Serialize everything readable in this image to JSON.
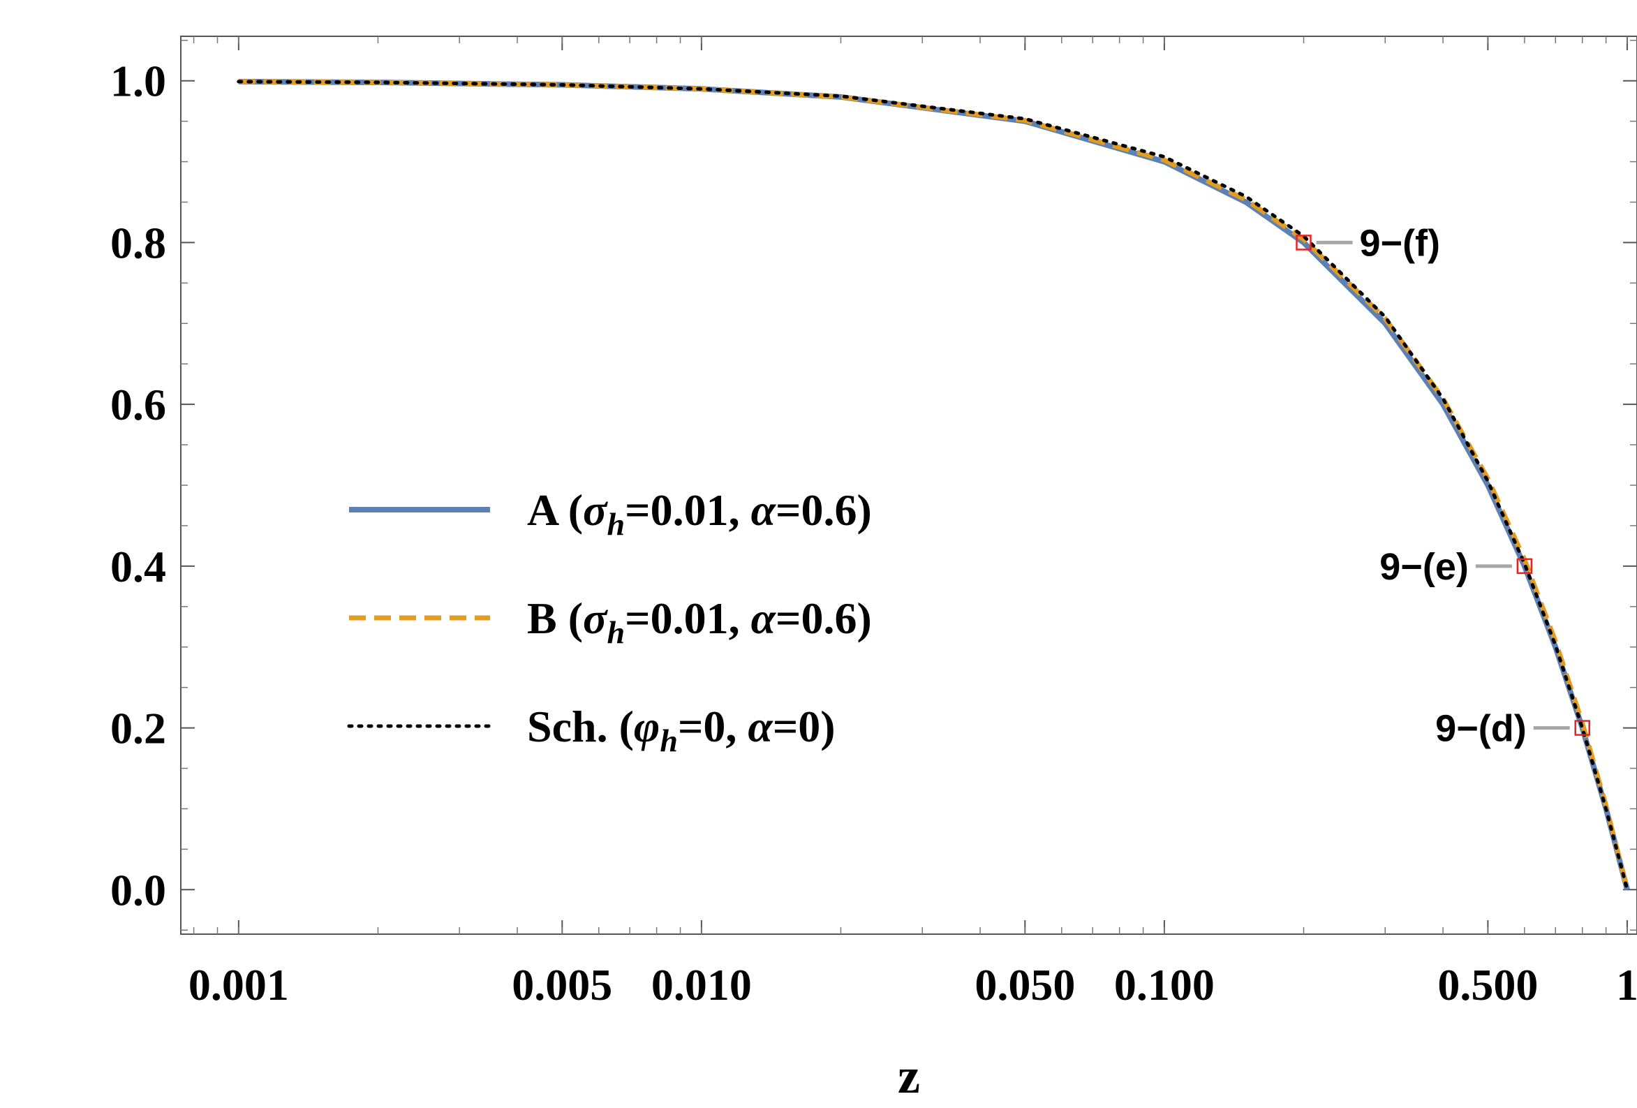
{
  "chart_data": {
    "type": "line",
    "xscale": "log",
    "xlabel": "z",
    "ylabel": "",
    "xlim": [
      0.00075,
      1.05
    ],
    "ylim": [
      -0.055,
      1.055
    ],
    "x_ticks": [
      {
        "value": 0.001,
        "label": "0.001"
      },
      {
        "value": 0.005,
        "label": "0.005"
      },
      {
        "value": 0.01,
        "label": "0.010"
      },
      {
        "value": 0.05,
        "label": "0.050"
      },
      {
        "value": 0.1,
        "label": "0.100"
      },
      {
        "value": 0.5,
        "label": "0.500"
      },
      {
        "value": 1,
        "label": "1"
      }
    ],
    "y_ticks": [
      {
        "value": 0.0,
        "label": "0.0"
      },
      {
        "value": 0.2,
        "label": "0.2"
      },
      {
        "value": 0.4,
        "label": "0.4"
      },
      {
        "value": 0.6,
        "label": "0.6"
      },
      {
        "value": 0.8,
        "label": "0.8"
      },
      {
        "value": 1.0,
        "label": "1.0"
      }
    ],
    "legend_position": "center-left",
    "series": [
      {
        "id": "A",
        "legend_main": "A (",
        "legend_sym1": "σ",
        "legend_sub": "h",
        "legend_rest": "=0.01, ",
        "legend_sym2": "α",
        "legend_end": "=0.6)",
        "color": "#5e81b5",
        "style": "solid",
        "x": [
          0.001,
          0.002,
          0.005,
          0.01,
          0.02,
          0.05,
          0.1,
          0.15,
          0.2,
          0.3,
          0.4,
          0.5,
          0.6,
          0.7,
          0.8,
          0.9,
          1.0
        ],
        "y": [
          0.999,
          0.998,
          0.995,
          0.99,
          0.98,
          0.95,
          0.9,
          0.85,
          0.8,
          0.7,
          0.6,
          0.5,
          0.4,
          0.3,
          0.2,
          0.1,
          0.0
        ]
      },
      {
        "id": "B",
        "legend_main": "B (",
        "legend_sym1": "σ",
        "legend_sub": "h",
        "legend_rest": "=0.01, ",
        "legend_sym2": "α",
        "legend_end": "=0.6)",
        "color": "#e19c24",
        "style": "dashed",
        "x": [
          0.001,
          0.002,
          0.005,
          0.01,
          0.02,
          0.05,
          0.1,
          0.15,
          0.2,
          0.3,
          0.4,
          0.5,
          0.6,
          0.7,
          0.8,
          0.9,
          1.0
        ],
        "y": [
          0.999,
          0.998,
          0.995,
          0.99,
          0.98,
          0.951,
          0.902,
          0.853,
          0.804,
          0.706,
          0.607,
          0.508,
          0.408,
          0.307,
          0.206,
          0.104,
          0.0
        ]
      },
      {
        "id": "Sch",
        "legend_main": "Sch. (",
        "legend_sym1": "φ",
        "legend_sub": "h",
        "legend_rest": "=0, ",
        "legend_sym2": "α",
        "legend_end": "=0)",
        "color": "#000000",
        "style": "dotted",
        "x": [
          0.001,
          0.002,
          0.005,
          0.01,
          0.02,
          0.05,
          0.1,
          0.15,
          0.2,
          0.3,
          0.4,
          0.5,
          0.6,
          0.7,
          0.8,
          0.9,
          1.0
        ],
        "y": [
          0.999,
          0.998,
          0.995,
          0.99,
          0.981,
          0.953,
          0.906,
          0.857,
          0.808,
          0.708,
          0.607,
          0.505,
          0.403,
          0.302,
          0.2,
          0.1,
          0.0
        ]
      }
    ],
    "annotations": [
      {
        "label": "9−(f)",
        "x": 0.2,
        "y": 0.8,
        "side": "right"
      },
      {
        "label": "9−(e)",
        "x": 0.6,
        "y": 0.4,
        "side": "left"
      },
      {
        "label": "9−(d)",
        "x": 0.8,
        "y": 0.2,
        "side": "left"
      }
    ],
    "annotation_marker_color": "#e8231f",
    "annotation_leader_color": "#a6a6a6",
    "grid": false
  }
}
